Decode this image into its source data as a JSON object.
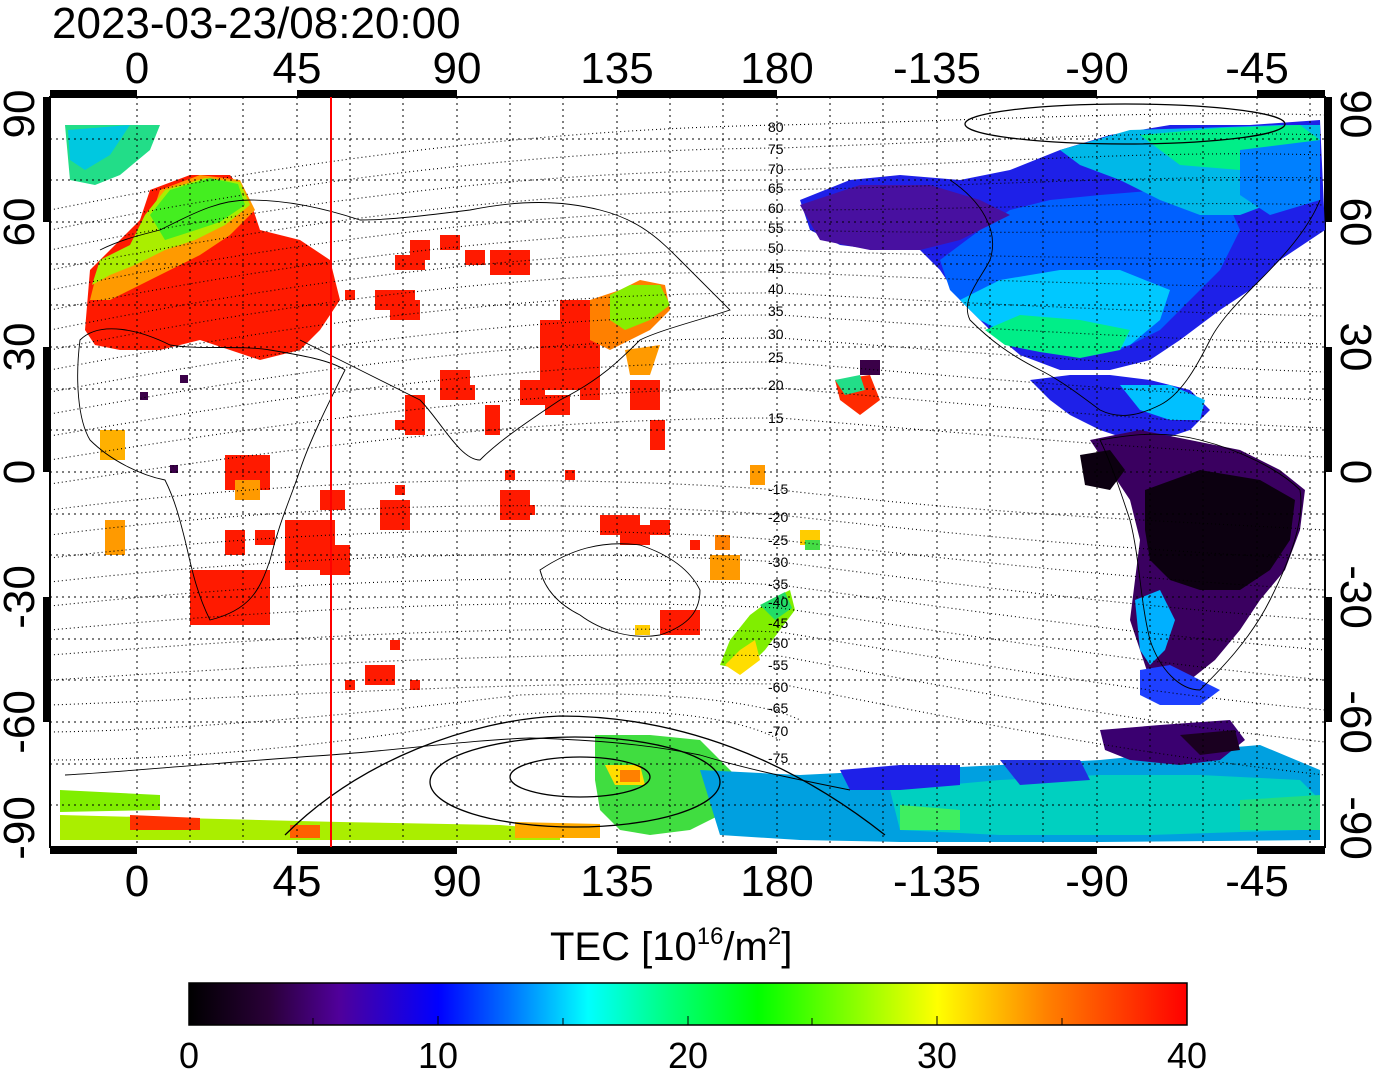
{
  "timestamp": "2023-03-23/08:20:00",
  "top_lon_labels": [
    "0",
    "45",
    "90",
    "135",
    "180",
    "-135",
    "-90",
    "-45"
  ],
  "bottom_lon_labels": [
    "0",
    "45",
    "90",
    "135",
    "180",
    "-135",
    "-90",
    "-45"
  ],
  "left_lat_labels": [
    "90",
    "60",
    "30",
    "0",
    "-30",
    "-60",
    "-90"
  ],
  "right_lat_labels": [
    "90",
    "60",
    "30",
    "0",
    "-30",
    "-60",
    "-90"
  ],
  "contour_labels_north": [
    "80",
    "75",
    "70",
    "65",
    "60",
    "55",
    "50",
    "45",
    "40",
    "35",
    "30",
    "25",
    "20",
    "15"
  ],
  "contour_labels_south": [
    "-15",
    "-20",
    "-25",
    "-30",
    "-35",
    "-40",
    "-45",
    "-50",
    "-55",
    "-60",
    "-65",
    "-70",
    "-75"
  ],
  "colorbar": {
    "title_main": "TEC  [10",
    "title_sup": "16",
    "title_mid": "/m",
    "title_sup2": "2",
    "title_end": "]",
    "ticks": [
      "0",
      "10",
      "20",
      "30",
      "40"
    ],
    "stops": [
      "#000000",
      "#300040",
      "#5000a0",
      "#0000ff",
      "#0080ff",
      "#00ffff",
      "#00ff80",
      "#00ff00",
      "#80ff00",
      "#ffff00",
      "#ff8000",
      "#ff0000"
    ]
  },
  "map": {
    "lon_range": [
      -20,
      335
    ],
    "lat_range": [
      -90,
      90
    ],
    "grid": true,
    "subsolar_longitude": 55,
    "marker_color": "#ff0000"
  }
}
